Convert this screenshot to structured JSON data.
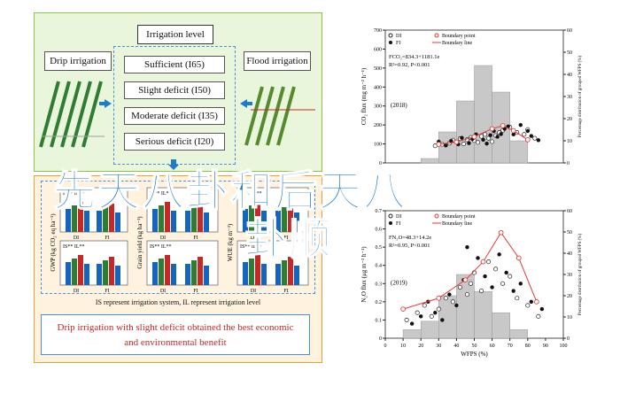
{
  "diagram": {
    "irrigation_level_title": "Irrigation level",
    "levels": [
      "Sufficient (I65)",
      "Slight deficit (I50)",
      "Moderate deficit (I35)",
      "Serious deficit (I20)"
    ],
    "drip_label": "Drip irrigation",
    "flood_label": "Flood irrigation",
    "legend_note": "IS represent irrigation system, IL represent irrigation level",
    "result_line1": "Drip irrigation with slight deficit obtained the best economic",
    "result_line2": "and environmental benefit",
    "mini_ylabels": [
      "GWP (kg CO₂ eq ha⁻¹)",
      "Grain yield (kg ha⁻¹)",
      "WUE (kg m⁻³)"
    ],
    "mini_sig": [
      "IS** IL**",
      "IS** IL**",
      "IS** IL**"
    ],
    "mini_x": [
      "DI",
      "FI"
    ]
  },
  "overlay": {
    "line1": "先天八卦和后天八",
    "line2": "卦顺"
  },
  "colors": {
    "accent": "#1d7cc9",
    "drip_bar": "#1565c0",
    "green_bar": "#2e7d32",
    "red_bar": "#c62828"
  },
  "chart_data": [
    {
      "type": "scatter",
      "panel": "(2018)",
      "series": [
        {
          "name": "DI",
          "points": [
            [
              28,
              90
            ],
            [
              32,
              98
            ],
            [
              36,
              104
            ],
            [
              38,
              120
            ],
            [
              40,
              110
            ],
            [
              42,
              128
            ],
            [
              44,
              100
            ],
            [
              46,
              122
            ],
            [
              48,
              134
            ],
            [
              50,
              118
            ],
            [
              52,
              108
            ],
            [
              54,
              140
            ],
            [
              56,
              150
            ],
            [
              58,
              130
            ],
            [
              60,
              112
            ],
            [
              62,
              144
            ],
            [
              64,
              160
            ],
            [
              66,
              172
            ],
            [
              70,
              188
            ],
            [
              74,
              160
            ],
            [
              78,
              150
            ],
            [
              80,
              176
            ],
            [
              84,
              130
            ]
          ]
        },
        {
          "name": "FI",
          "points": [
            [
              30,
              112
            ],
            [
              34,
              92
            ],
            [
              37,
              116
            ],
            [
              41,
              98
            ],
            [
              43,
              132
            ],
            [
              47,
              104
            ],
            [
              49,
              126
            ],
            [
              51,
              150
            ],
            [
              55,
              122
            ],
            [
              57,
              102
            ],
            [
              59,
              146
            ],
            [
              61,
              168
            ],
            [
              63,
              138
            ],
            [
              65,
              152
            ],
            [
              67,
              180
            ],
            [
              69,
              192
            ],
            [
              72,
              150
            ],
            [
              76,
              200
            ],
            [
              80,
              168
            ],
            [
              82,
              142
            ],
            [
              86,
              120
            ]
          ]
        }
      ],
      "boundary_points": [
        [
          30,
          98
        ],
        [
          40,
          110
        ],
        [
          50,
          138
        ],
        [
          60,
          180
        ],
        [
          66,
          196
        ],
        [
          72,
          170
        ],
        [
          80,
          122
        ]
      ],
      "equations": [
        "FCO₂=834.3+1181.1e",
        "R²=0.92, P<0.001"
      ],
      "legend": [
        "DI",
        "FI",
        "Boundary point",
        "Boundary line"
      ],
      "xlabel": "WFPS (%)",
      "ylabel": "CO₂ flux (mg m⁻² h⁻¹)",
      "y2label": "Percentage distribution of grouped WFPS (%)",
      "yticks": [
        0,
        100,
        200,
        300,
        400,
        500,
        600,
        700
      ],
      "y2ticks": [
        0,
        10,
        20,
        30,
        40,
        50,
        60
      ],
      "histogram": [
        [
          20,
          30,
          2
        ],
        [
          30,
          40,
          14
        ],
        [
          40,
          50,
          28
        ],
        [
          50,
          60,
          44
        ],
        [
          60,
          70,
          32
        ],
        [
          70,
          80,
          10
        ]
      ]
    },
    {
      "type": "scatter",
      "panel": "(2019)",
      "series": [
        {
          "name": "DI",
          "points": [
            [
              12,
              0.1
            ],
            [
              18,
              0.14
            ],
            [
              22,
              0.18
            ],
            [
              26,
              0.12
            ],
            [
              30,
              0.16
            ],
            [
              34,
              0.22
            ],
            [
              38,
              0.2
            ],
            [
              42,
              0.28
            ],
            [
              46,
              0.24
            ],
            [
              48,
              0.3
            ],
            [
              50,
              0.36
            ],
            [
              54,
              0.26
            ],
            [
              58,
              0.42
            ],
            [
              62,
              0.38
            ],
            [
              66,
              0.3
            ],
            [
              70,
              0.34
            ],
            [
              74,
              0.22
            ],
            [
              80,
              0.18
            ],
            [
              86,
              0.12
            ]
          ]
        },
        {
          "name": "FI",
          "points": [
            [
              15,
              0.08
            ],
            [
              20,
              0.12
            ],
            [
              24,
              0.2
            ],
            [
              28,
              0.14
            ],
            [
              32,
              0.1
            ],
            [
              36,
              0.24
            ],
            [
              40,
              0.18
            ],
            [
              44,
              0.32
            ],
            [
              46,
              0.5
            ],
            [
              52,
              0.44
            ],
            [
              56,
              0.34
            ],
            [
              60,
              0.28
            ],
            [
              64,
              0.46
            ],
            [
              68,
              0.36
            ],
            [
              72,
              0.26
            ],
            [
              76,
              0.3
            ],
            [
              82,
              0.2
            ],
            [
              88,
              0.16
            ]
          ]
        }
      ],
      "boundary_points": [
        [
          10,
          0.16
        ],
        [
          30,
          0.22
        ],
        [
          45,
          0.32
        ],
        [
          55,
          0.42
        ],
        [
          65,
          0.58
        ],
        [
          75,
          0.44
        ],
        [
          85,
          0.2
        ]
      ],
      "equations": [
        "FN₂O=48.3+14.2e",
        "R²=0.95, P<0.001"
      ],
      "legend": [
        "DI",
        "FI",
        "Boundary point",
        "Boundary line"
      ],
      "xlabel": "WFPS (%)",
      "ylabel": "N₂O flux (μg m⁻² h⁻¹)",
      "y2label": "Percentage distribution of grouped WFPS (%)",
      "xticks": [
        0,
        10,
        20,
        30,
        40,
        50,
        60,
        70,
        80,
        90,
        100
      ],
      "yticks": [
        0,
        0.1,
        0.2,
        0.3,
        0.4,
        0.5,
        0.6,
        0.7
      ],
      "y2ticks": [
        0,
        10,
        20,
        30,
        40,
        50,
        60
      ],
      "histogram": [
        [
          10,
          20,
          4
        ],
        [
          20,
          30,
          8
        ],
        [
          30,
          40,
          20
        ],
        [
          40,
          50,
          30
        ],
        [
          50,
          60,
          22
        ],
        [
          60,
          70,
          12
        ],
        [
          70,
          80,
          4
        ]
      ]
    }
  ]
}
